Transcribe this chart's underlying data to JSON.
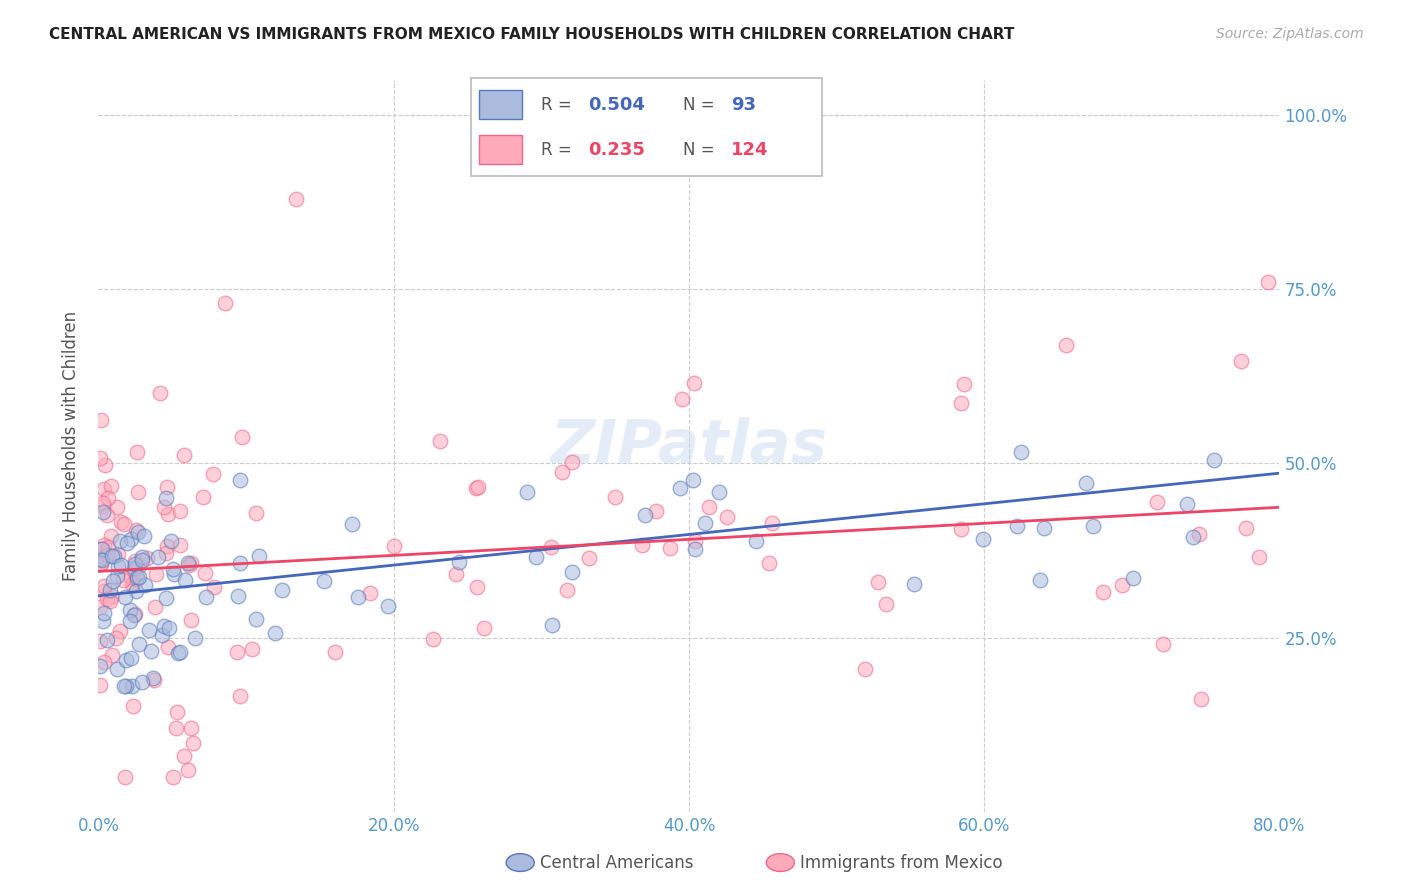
{
  "title": "CENTRAL AMERICAN VS IMMIGRANTS FROM MEXICO FAMILY HOUSEHOLDS WITH CHILDREN CORRELATION CHART",
  "source": "Source: ZipAtlas.com",
  "ylabel": "Family Households with Children",
  "blue_color": "#aabbdd",
  "pink_color": "#ffaabb",
  "blue_edge_color": "#5577bb",
  "pink_edge_color": "#ee6688",
  "blue_line_color": "#4466bb",
  "pink_line_color": "#ee4466",
  "watermark": "ZIPatlas",
  "tick_color": "#5599cc",
  "grid_color": "#cccccc",
  "title_color": "#222222",
  "source_color": "#aaaaaa",
  "blue_intercept": 0.31,
  "blue_slope": 0.22,
  "pink_intercept": 0.345,
  "pink_slope": 0.115,
  "n_blue": 93,
  "n_pink": 124,
  "legend_r_blue": "0.504",
  "legend_n_blue": "93",
  "legend_r_pink": "0.235",
  "legend_n_pink": "124",
  "xlim": [
    0.0,
    0.8
  ],
  "ylim": [
    0.0,
    1.05
  ],
  "xticks": [
    0.0,
    0.2,
    0.4,
    0.6,
    0.8
  ],
  "yticks": [
    0.25,
    0.5,
    0.75,
    1.0
  ],
  "xticklabels": [
    "0.0%",
    "20.0%",
    "40.0%",
    "60.0%",
    "80.0%"
  ],
  "yticklabels": [
    "25.0%",
    "50.0%",
    "75.0%",
    "100.0%"
  ]
}
